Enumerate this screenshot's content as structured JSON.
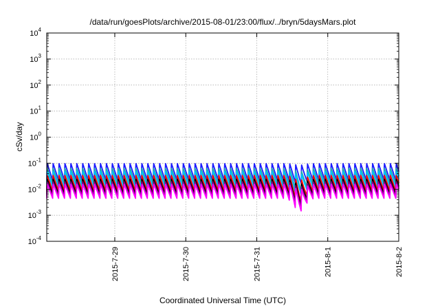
{
  "chart_data": {
    "type": "line",
    "title": "/data/run/goesPlots/archive/2015-08-01/23:00/flux/../bryn/5daysMars.plot",
    "xlabel": "Coordinated Universal Time (UTC)",
    "ylabel": "cSv/day",
    "y_scale": "log",
    "ylim": [
      0.0001,
      10000
    ],
    "y_ticks": [
      {
        "base": "10",
        "exp": "-4",
        "value": 0.0001
      },
      {
        "base": "10",
        "exp": "-3",
        "value": 0.001
      },
      {
        "base": "10",
        "exp": "-2",
        "value": 0.01
      },
      {
        "base": "10",
        "exp": "-1",
        "value": 0.1
      },
      {
        "base": "10",
        "exp": "0",
        "value": 1
      },
      {
        "base": "10",
        "exp": "1",
        "value": 10
      },
      {
        "base": "10",
        "exp": "2",
        "value": 100
      },
      {
        "base": "10",
        "exp": "3",
        "value": 1000
      },
      {
        "base": "10",
        "exp": "4",
        "value": 10000
      }
    ],
    "xlim": [
      "2015-07-28 01:00",
      "2015-08-02 00:00"
    ],
    "x_ticks": [
      "2015-7-29",
      "2015-7-30",
      "2015-7-31",
      "2015-8-1",
      "2015-8-2"
    ],
    "grid": true,
    "cycle_hours": 2,
    "dip_time": "2015-07-31 14:30",
    "series": [
      {
        "color": "#1a1aff",
        "peak": 0.1,
        "trough": 0.022,
        "dip_min": 0.016
      },
      {
        "color": "#20b2aa",
        "peak": 0.065,
        "trough": 0.016,
        "dip_min": 0.008
      },
      {
        "color": "#00c0ff",
        "peak": 0.05,
        "trough": 0.012,
        "dip_min": 0.006
      },
      {
        "color": "#ff0000",
        "peak": 0.035,
        "trough": 0.0085,
        "dip_min": 0.003
      },
      {
        "color": "#000000",
        "peak": 0.025,
        "trough": 0.0065,
        "dip_min": 0.0022
      },
      {
        "color": "#800080",
        "peak": 0.02,
        "trough": 0.0055,
        "dip_min": 0.0018
      },
      {
        "color": "#ff00ff",
        "peak": 0.016,
        "trough": 0.0045,
        "dip_min": 0.0014
      }
    ]
  }
}
